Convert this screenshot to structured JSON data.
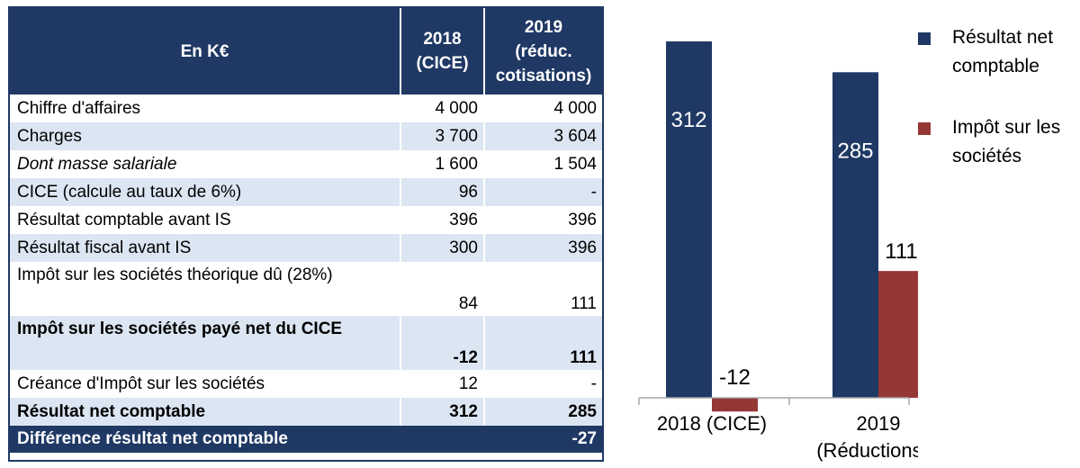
{
  "table": {
    "header": {
      "label": "En K€",
      "col2018": "2018\n(CICE)",
      "col2019": "2019\n(réduc.\ncotisations)"
    },
    "rows": [
      {
        "label": "Chiffre d'affaires",
        "v2018": "4 000",
        "v2019": "4 000",
        "style": "normal"
      },
      {
        "label": "Charges",
        "v2018": "3 700",
        "v2019": "3 604",
        "style": "normal"
      },
      {
        "label": "Dont masse salariale",
        "v2018": "1 600",
        "v2019": "1 504",
        "style": "italic"
      },
      {
        "label": "CICE (calcule au taux de 6%)",
        "v2018": "96",
        "v2019": "-",
        "style": "normal"
      },
      {
        "label": "Résultat comptable avant IS",
        "v2018": "396",
        "v2019": "396",
        "style": "normal"
      },
      {
        "label": "Résultat fiscal avant IS",
        "v2018": "300",
        "v2019": "396",
        "style": "normal"
      },
      {
        "label": "Impôt sur les sociétés théorique dû (28%)",
        "v2018": "84",
        "v2019": "111",
        "style": "normal",
        "tall": true
      },
      {
        "label": "Impôt sur les sociétés payé net du CICE",
        "v2018": "-12",
        "v2019": "111",
        "style": "bold",
        "tall": true
      },
      {
        "label": "Créance d'Impôt sur les sociétés",
        "v2018": "12",
        "v2019": "-",
        "style": "normal"
      },
      {
        "label": "Résultat net comptable",
        "v2018": "312",
        "v2019": "285",
        "style": "bold"
      }
    ],
    "diff": {
      "label": "Différence résultat net comptable",
      "value": "-27"
    }
  },
  "chart_data": {
    "type": "bar",
    "categories": [
      "2018 (CICE)",
      "2019 (Réductions …"
    ],
    "series": [
      {
        "name": "Résultat net comptable",
        "values": [
          312,
          285
        ],
        "color": "#1f3864"
      },
      {
        "name": "Impôt sur les sociétés",
        "values": [
          -12,
          111
        ],
        "color": "#953735"
      }
    ],
    "data_labels": [
      [
        "312",
        "285"
      ],
      [
        "-12",
        "111"
      ]
    ],
    "legend_position": "right",
    "grid": false
  }
}
